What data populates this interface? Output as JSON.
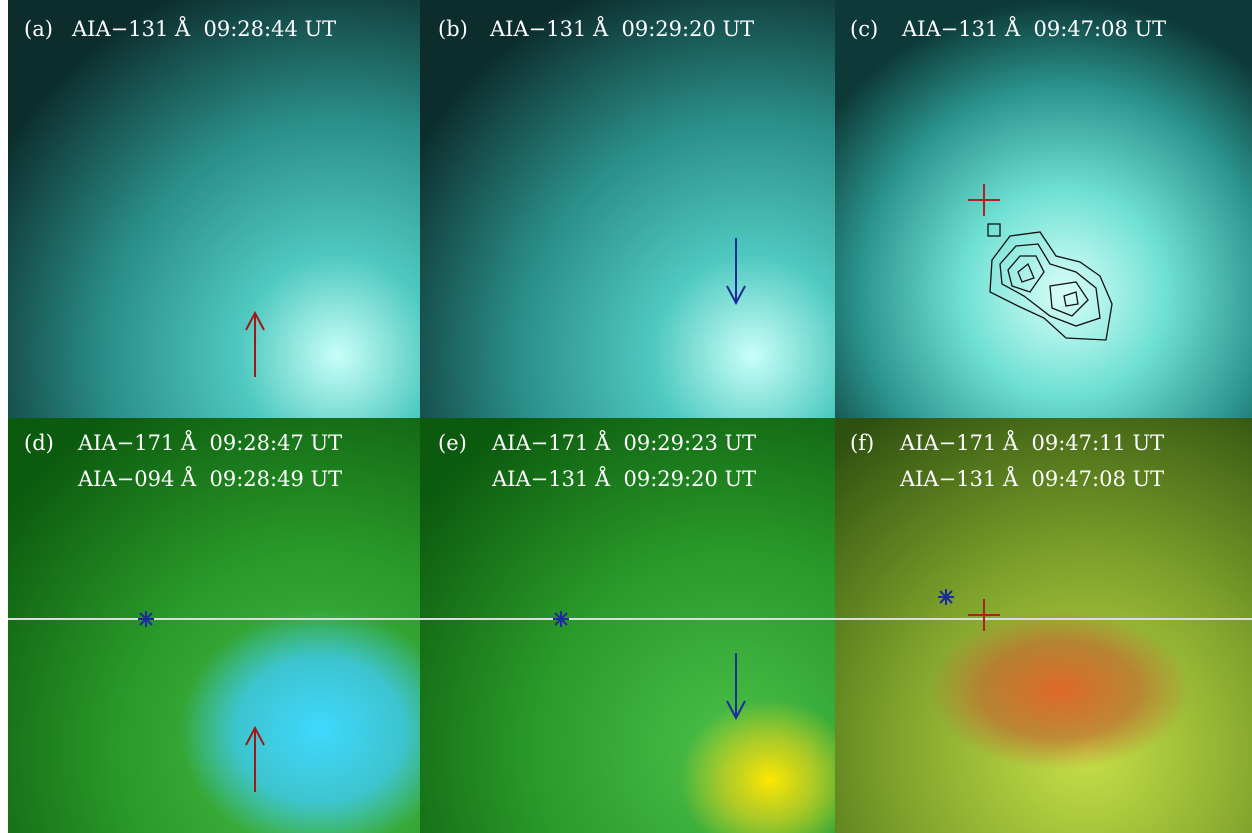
{
  "panels": [
    {
      "label": "(a)",
      "lines": [
        "AIA−131 Å  09:28:44 UT"
      ]
    },
    {
      "label": "(b)",
      "lines": [
        "AIA−131 Å  09:29:20 UT"
      ]
    },
    {
      "label": "(c)",
      "lines": [
        "AIA−131 Å  09:47:08 UT"
      ]
    },
    {
      "label": "(d)",
      "lines": [
        "AIA−171 Å  09:28:47 UT",
        "AIA−094 Å  09:28:49 UT"
      ]
    },
    {
      "label": "(e)",
      "lines": [
        "AIA−171 Å  09:29:23 UT",
        "AIA−131 Å  09:29:20 UT"
      ]
    },
    {
      "label": "(f)",
      "lines": [
        "AIA−171 Å  09:47:11 UT",
        "AIA−131 Å  09:47:08 UT"
      ]
    }
  ]
}
